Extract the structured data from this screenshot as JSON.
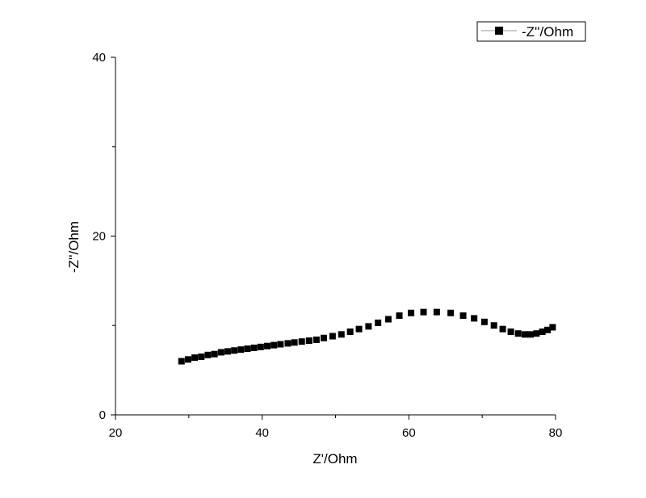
{
  "chart_data": {
    "type": "scatter",
    "title": "",
    "xlabel": "Z'/Ohm",
    "ylabel": "-Z''/Ohm",
    "xlim": [
      20,
      80
    ],
    "ylim": [
      0,
      40
    ],
    "x_ticks": [
      "20",
      "40",
      "60",
      "80"
    ],
    "y_ticks": [
      "0",
      "20",
      "40"
    ],
    "grid": false,
    "legend": {
      "position": "top-right",
      "entries": [
        "-Z''/Ohm"
      ]
    },
    "marker": "square",
    "color": "#000000",
    "series": [
      {
        "name": "-Z''/Ohm",
        "x": [
          29.0,
          29.9,
          30.8,
          31.7,
          32.6,
          33.5,
          34.4,
          35.3,
          36.2,
          37.1,
          38.0,
          38.9,
          39.8,
          40.7,
          41.6,
          42.5,
          43.5,
          44.4,
          45.4,
          46.4,
          47.4,
          48.4,
          49.6,
          50.8,
          52.0,
          53.2,
          54.5,
          55.8,
          57.2,
          58.7,
          60.3,
          62.0,
          63.8,
          65.7,
          67.4,
          68.9,
          70.3,
          71.6,
          72.8,
          73.9,
          74.9,
          75.8,
          76.6,
          77.4,
          78.2,
          78.9,
          79.6
        ],
        "y": [
          6.0,
          6.2,
          6.4,
          6.5,
          6.7,
          6.8,
          7.0,
          7.1,
          7.2,
          7.3,
          7.4,
          7.5,
          7.6,
          7.7,
          7.8,
          7.9,
          8.0,
          8.1,
          8.2,
          8.3,
          8.4,
          8.6,
          8.8,
          9.0,
          9.3,
          9.6,
          9.9,
          10.3,
          10.7,
          11.1,
          11.4,
          11.5,
          11.5,
          11.4,
          11.1,
          10.8,
          10.4,
          10.0,
          9.6,
          9.3,
          9.1,
          9.0,
          9.0,
          9.1,
          9.3,
          9.5,
          9.8
        ]
      }
    ]
  }
}
